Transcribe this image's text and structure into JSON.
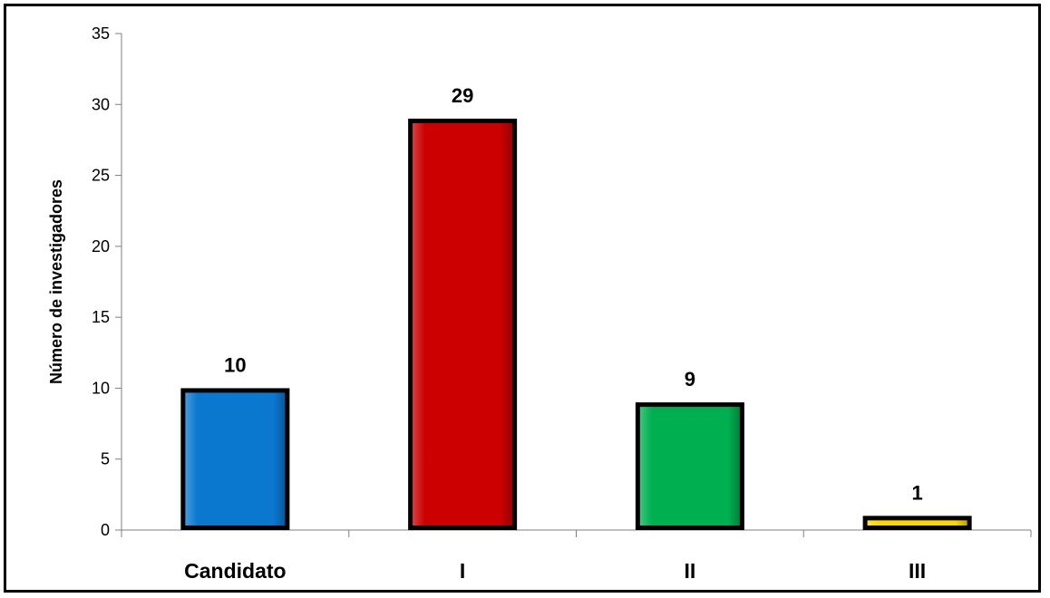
{
  "chart_data": {
    "type": "bar",
    "title": "",
    "xlabel": "",
    "ylabel": "Número de investigadores",
    "categories": [
      "Candidato",
      "I",
      "II",
      "III"
    ],
    "values": [
      10,
      29,
      9,
      1
    ],
    "colors": [
      "#0b78d0",
      "#cc0000",
      "#00b050",
      "#ffd700"
    ],
    "ylim": [
      0,
      35
    ],
    "yticks": [
      0,
      5,
      10,
      15,
      20,
      25,
      30,
      35
    ],
    "grid": false,
    "legend": "none",
    "data_labels": true
  }
}
